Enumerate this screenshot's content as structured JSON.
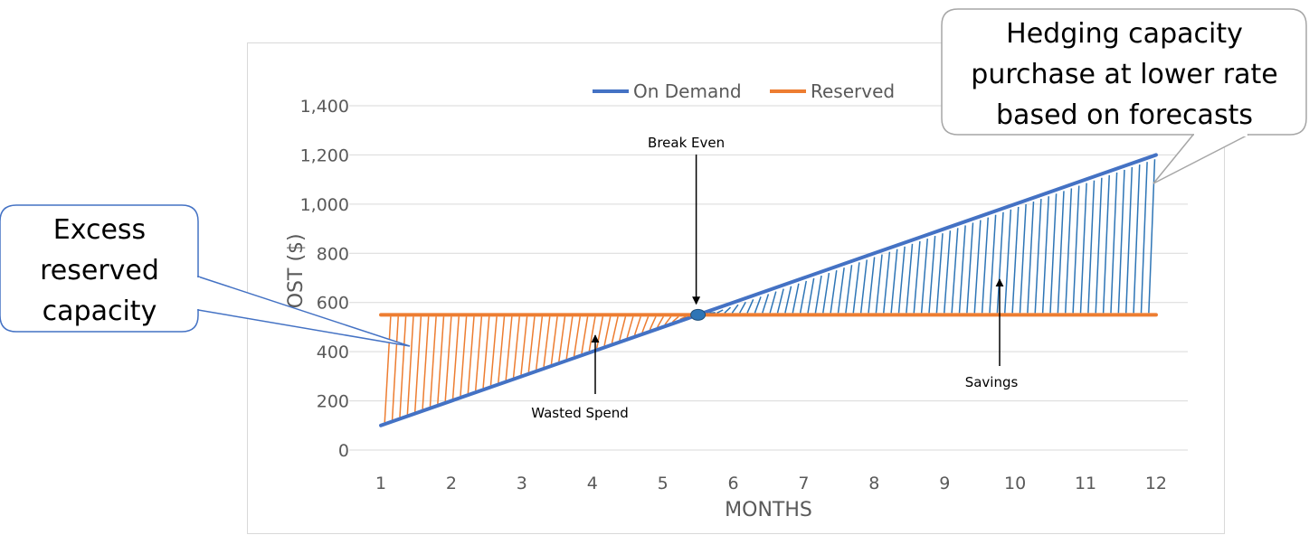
{
  "chart_data": {
    "type": "line",
    "xlabel": "MONTHS",
    "ylabel": "COST ($)",
    "x": [
      1,
      2,
      3,
      4,
      5,
      6,
      7,
      8,
      9,
      10,
      11,
      12
    ],
    "xlim": [
      0.55,
      12.45
    ],
    "ylim": [
      0,
      1400
    ],
    "y_ticks": [
      0,
      200,
      400,
      600,
      800,
      1000,
      1200,
      1400
    ],
    "y_tick_labels": [
      "0",
      "200",
      "400",
      "600",
      "800",
      "1,000",
      "1,200",
      "1,400"
    ],
    "grid": "horizontal",
    "legend_position": "top",
    "series": [
      {
        "name": "On Demand",
        "color": "#4472C4",
        "values": [
          100,
          200,
          300,
          400,
          500,
          600,
          700,
          800,
          900,
          1000,
          1100,
          1200
        ]
      },
      {
        "name": "Reserved",
        "color": "#ED7D31",
        "values": [
          550,
          550,
          550,
          550,
          550,
          550,
          550,
          550,
          550,
          550,
          550,
          550
        ]
      }
    ],
    "break_even": {
      "x": 5.5,
      "y": 550,
      "color": "#2E75B6"
    },
    "hatched_regions": [
      {
        "from_x": 1,
        "to_x": 5.5,
        "color": "#ED7D31"
      },
      {
        "from_x": 5.5,
        "to_x": 12,
        "color": "#2E75B6"
      }
    ],
    "annotations": [
      {
        "text": "Break Even",
        "x": 5.5,
        "y": 550
      },
      {
        "text": "Wasted Spend",
        "x": 3.95,
        "y": 440
      },
      {
        "text": "Savings",
        "x": 9.75,
        "y": 690
      }
    ],
    "callouts": [
      {
        "id": "excess",
        "lines": [
          "Excess",
          "reserved",
          "capacity"
        ]
      },
      {
        "id": "hedging",
        "lines": [
          "Hedging capacity",
          "purchase at lower rate",
          "based on forecasts"
        ]
      }
    ]
  }
}
